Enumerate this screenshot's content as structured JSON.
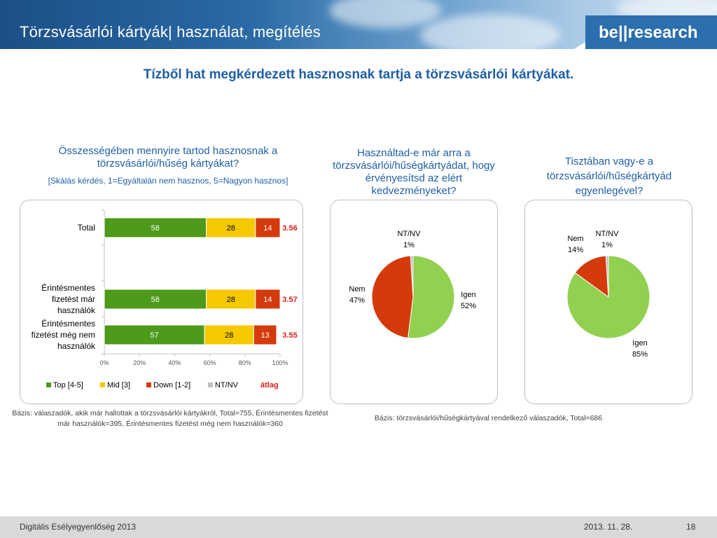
{
  "header": {
    "title": "Törzsvásárlói kártyák| használat, megítélés",
    "logo": "be||research"
  },
  "headline": "Tízből hat megkérdezett hasznosnak tartja a törzsvásárlói kártyákat.",
  "charts": {
    "bar_title": "Összességében mennyire tartod hasznosnak a törzsvásárlói/hűség kártyákat?",
    "bar_subtitle": "[Skálás kérdés, 1=Egyáltalán nem hasznos, 5=Nagyon hasznos]",
    "pie1_title": "Használtad-e már arra a törzsvásárlói/hűségkártyádat, hogy érvényesítsd az elért kedvezményeket?",
    "pie2_title": "Tisztában vagy-e a törzsvásárlói/hűségkártyád egyenlegével?",
    "bar_base": "Bázis: válaszadók, akik már hallottak a törzsvásárlói kártyákról, Total=755, Érintésmentes fizetést már használók=395, Érintésmentes fizetést még nem használók=360",
    "pie_base": "Bázis: törzsvásárlói/hűségkártyával rendelkező válaszadók, Total=686"
  },
  "chart_data": [
    {
      "type": "bar",
      "orientation": "horizontal-stacked",
      "categories": [
        "Total",
        "Érintésmentes fizetést már használók",
        "Érintésmentes fizetést még nem használók"
      ],
      "category_lines": [
        [
          "Total"
        ],
        [
          "Érintésmentes",
          "fizetést már",
          "használók"
        ],
        [
          "Érintésmentes",
          "fizetést még nem",
          "használók"
        ]
      ],
      "series": [
        {
          "name": "Top [4-5]",
          "values": [
            58,
            58,
            57
          ],
          "color": "#4e9a1a"
        },
        {
          "name": "Mid [3]",
          "values": [
            28,
            28,
            28
          ],
          "color": "#f5c800"
        },
        {
          "name": "Down [1-2]",
          "values": [
            14,
            14,
            13
          ],
          "color": "#d53a0c"
        },
        {
          "name": "NT/NV",
          "values": [
            0,
            0,
            0
          ],
          "color": "#bfbfbf"
        }
      ],
      "averages": {
        "name": "átlag",
        "values": [
          "3.56",
          "3.57",
          "3.55"
        ],
        "color": "#d52020"
      },
      "xlim": [
        0,
        100
      ],
      "x_ticks": [
        "0%",
        "20%",
        "40%",
        "60%",
        "80%",
        "100%"
      ],
      "legend_position": "bottom"
    },
    {
      "type": "pie",
      "slices": [
        {
          "label": "Igen",
          "value": 52,
          "text": "52%",
          "color": "#92d050"
        },
        {
          "label": "Nem",
          "value": 47,
          "text": "47%",
          "color": "#d53a0c"
        },
        {
          "label": "NT/NV",
          "value": 1,
          "text": "1%",
          "color": "#bfbfbf"
        }
      ]
    },
    {
      "type": "pie",
      "slices": [
        {
          "label": "Igen",
          "value": 85,
          "text": "85%",
          "color": "#92d050"
        },
        {
          "label": "Nem",
          "value": 14,
          "text": "14%",
          "color": "#d53a0c"
        },
        {
          "label": "NT/NV",
          "value": 1,
          "text": "1%",
          "color": "#bfbfbf"
        }
      ]
    }
  ],
  "footer": {
    "left": "Digitális Esélyegyenlőség 2013",
    "date": "2013. 11. 28.",
    "page": "18"
  }
}
